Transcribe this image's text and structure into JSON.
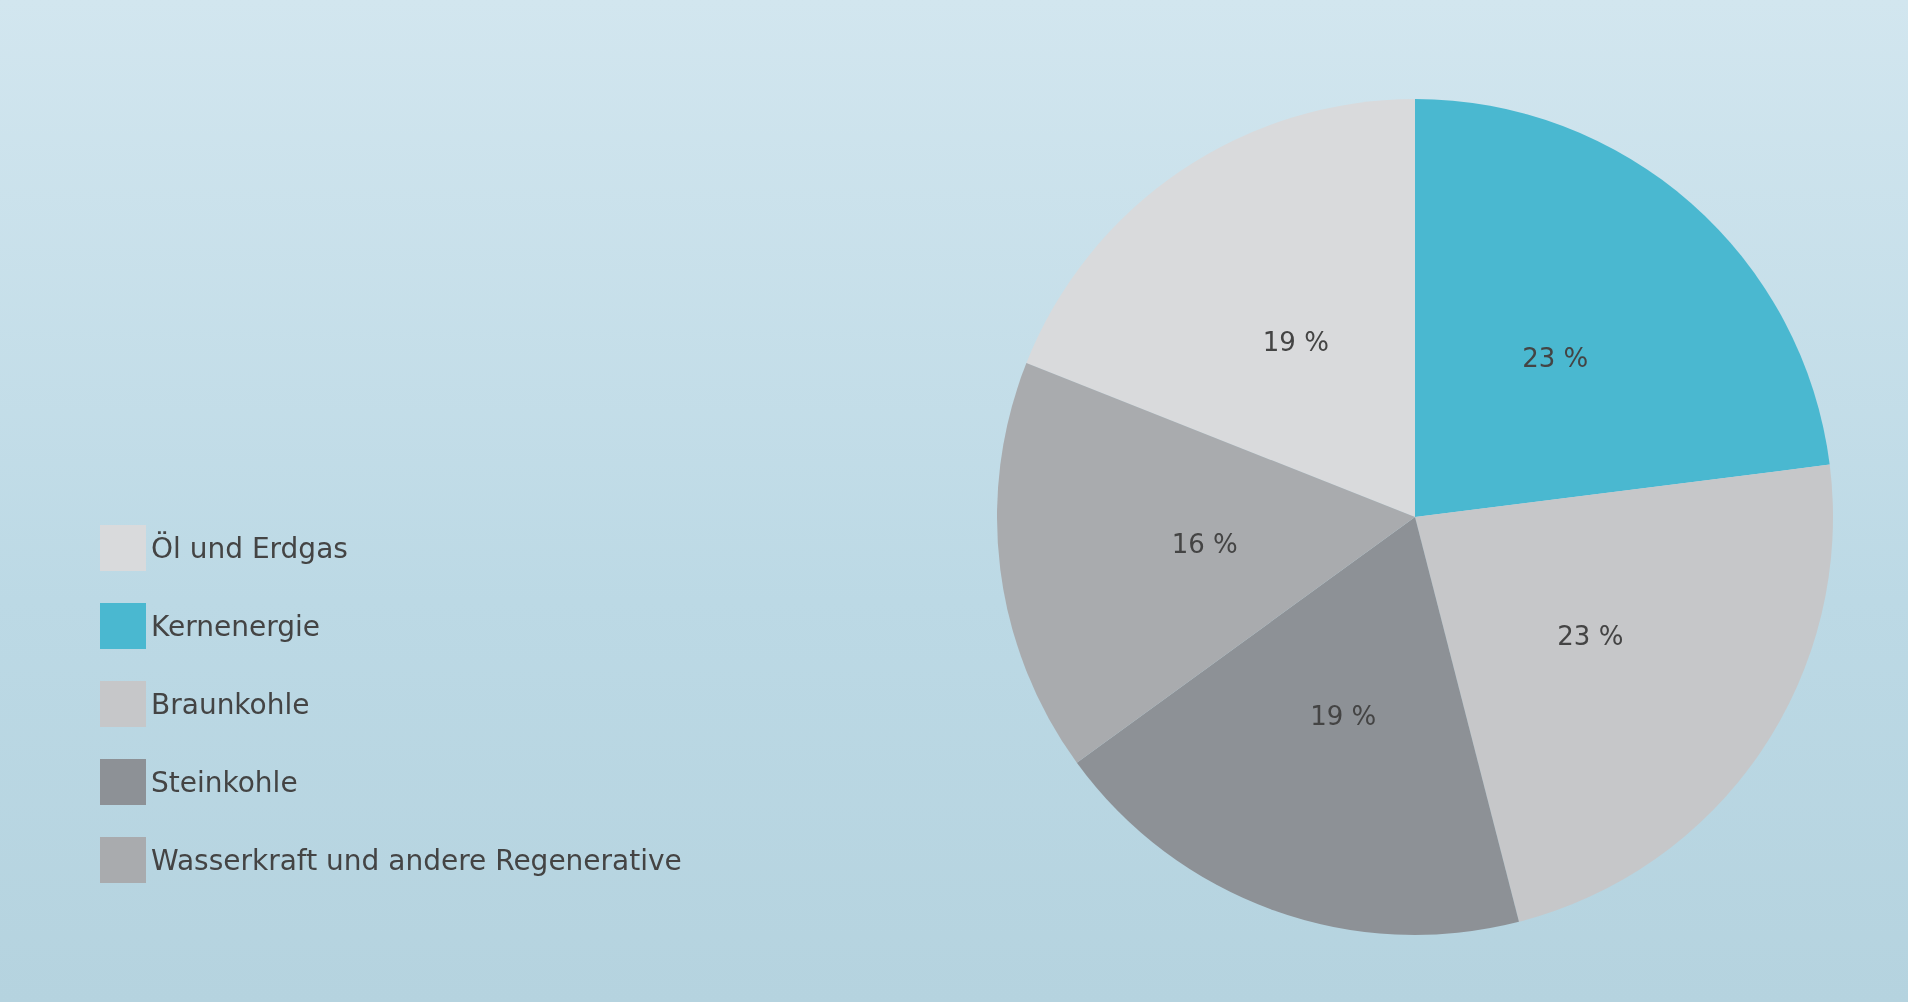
{
  "chart_data": {
    "type": "pie",
    "categories": [
      "Öl und Erdgas",
      "Kernenergie",
      "Braunkohle",
      "Steinkohle",
      "Wasserkraft und andere Regenerative"
    ],
    "values": [
      19,
      23,
      23,
      19,
      16
    ],
    "colors": [
      "#d9dadc",
      "#4ab8d0",
      "#c6c7c9",
      "#8d9196",
      "#a9abae"
    ],
    "value_labels": [
      "19 %",
      "23 %",
      "23 %",
      "19 %",
      "16 %"
    ],
    "legend": "left"
  }
}
